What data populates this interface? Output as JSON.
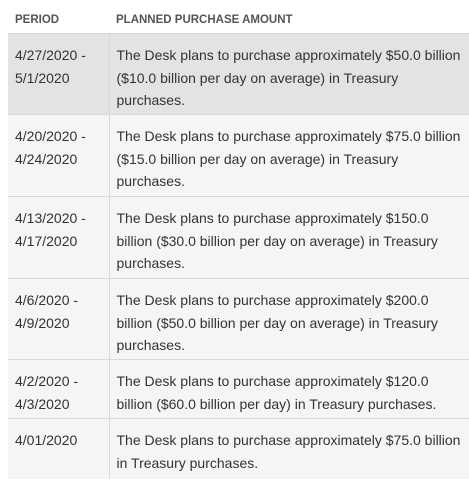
{
  "table": {
    "headers": {
      "period": "PERIOD",
      "amount": "PLANNED PURCHASE AMOUNT"
    },
    "rows": [
      {
        "period_line1": "4/27/2020 -",
        "period_line2": "5/1/2020",
        "amount": "The Desk plans to purchase approximately $50.0 billion ($10.0 billion per day on average) in Treasury purchases."
      },
      {
        "period_line1": "4/20/2020 -",
        "period_line2": "4/24/2020",
        "amount": "The Desk plans to purchase approximately $75.0 billion ($15.0 billion per day on average) in Treasury purchases."
      },
      {
        "period_line1": "4/13/2020 -",
        "period_line2": "4/17/2020",
        "amount": "The Desk plans to purchase approximately $150.0 billion ($30.0 billion per day on average) in Treasury purchases."
      },
      {
        "period_line1": "4/6/2020 -",
        "period_line2": "4/9/2020",
        "amount": "The Desk plans to purchase approximately $200.0 billion ($50.0 billion per day on average) in Treasury purchases."
      },
      {
        "period_line1": "4/2/2020 -",
        "period_line2": "4/3/2020",
        "amount": "The Desk plans to purchase approximately $120.0 billion ($60.0 billion per day) in Treasury purchases."
      },
      {
        "period_line1": "4/01/2020",
        "period_line2": "",
        "amount": "The Desk plans to purchase approximately $75.0 billion in Treasury purchases."
      }
    ]
  }
}
